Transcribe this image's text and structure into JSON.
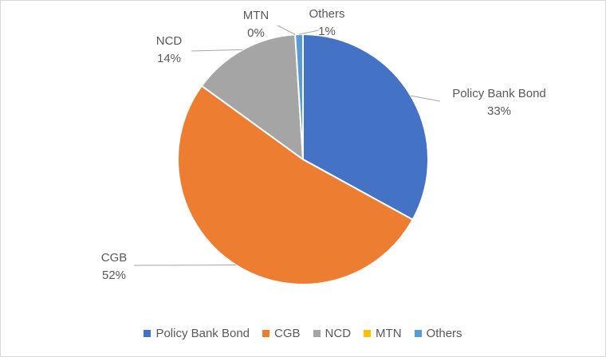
{
  "chart_data": {
    "type": "pie",
    "title": "",
    "categories": [
      "Policy Bank Bond",
      "CGB",
      "NCD",
      "MTN",
      "Others"
    ],
    "values": [
      33,
      52,
      14,
      0,
      1
    ],
    "value_labels": [
      "33%",
      "52%",
      "14%",
      "0%",
      "1%"
    ],
    "colors": [
      "#4472C4",
      "#ED7D31",
      "#A5A5A5",
      "#FFC000",
      "#5B9BD5"
    ],
    "legend_position": "bottom",
    "start_angle_deg": 0,
    "direction": "clockwise"
  }
}
